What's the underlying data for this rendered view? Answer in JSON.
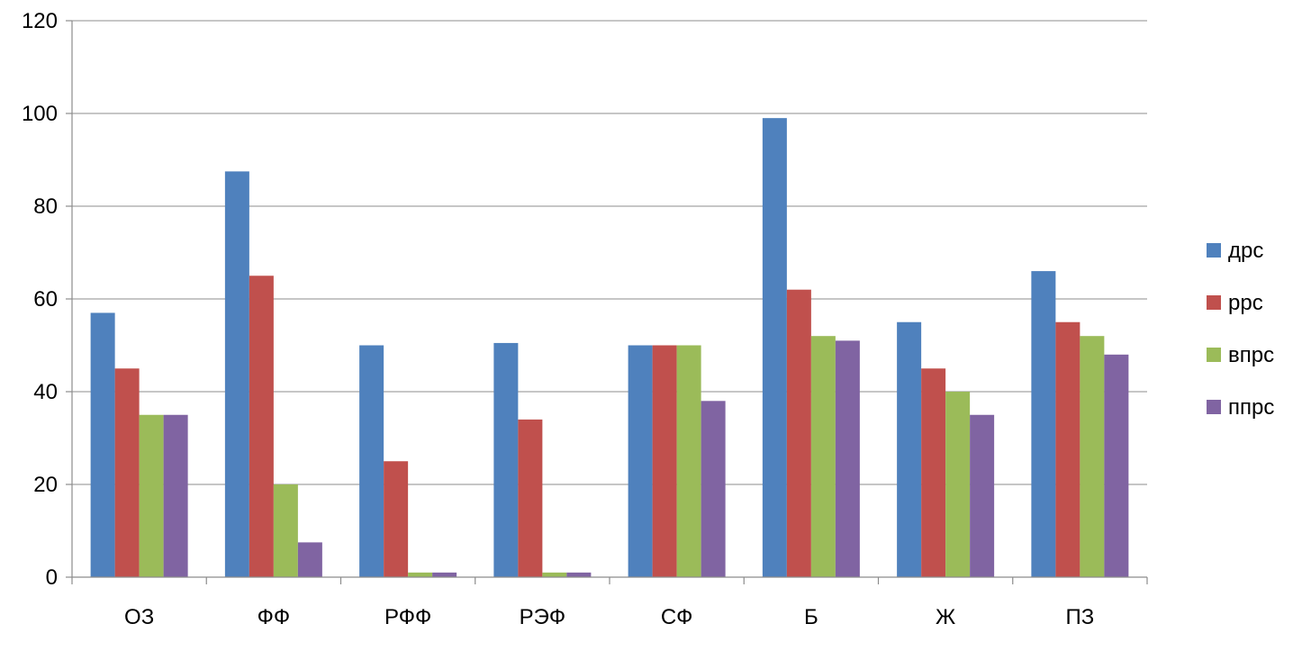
{
  "chart_data": {
    "type": "bar",
    "categories": [
      "ОЗ",
      "ФФ",
      "РФФ",
      "РЭФ",
      "СФ",
      "Б",
      "Ж",
      "ПЗ"
    ],
    "series": [
      {
        "name": "дрс",
        "color": "#4f81bd",
        "values": [
          57,
          87.5,
          50,
          50.5,
          50,
          99,
          55,
          66
        ]
      },
      {
        "name": "ррс",
        "color": "#c0504d",
        "values": [
          45,
          65,
          25,
          34,
          50,
          62,
          45,
          55
        ]
      },
      {
        "name": "впрс",
        "color": "#9bbb59",
        "values": [
          35,
          20,
          1,
          1,
          50,
          52,
          40,
          52
        ]
      },
      {
        "name": "ппрс",
        "color": "#8064a2",
        "values": [
          35,
          7.5,
          1,
          1,
          38,
          51,
          35,
          48
        ]
      }
    ],
    "title": "",
    "xlabel": "",
    "ylabel": "",
    "ylim": [
      0,
      120
    ],
    "yticks": [
      0,
      20,
      40,
      60,
      80,
      100,
      120
    ],
    "grid": true,
    "legend_position": "right"
  }
}
